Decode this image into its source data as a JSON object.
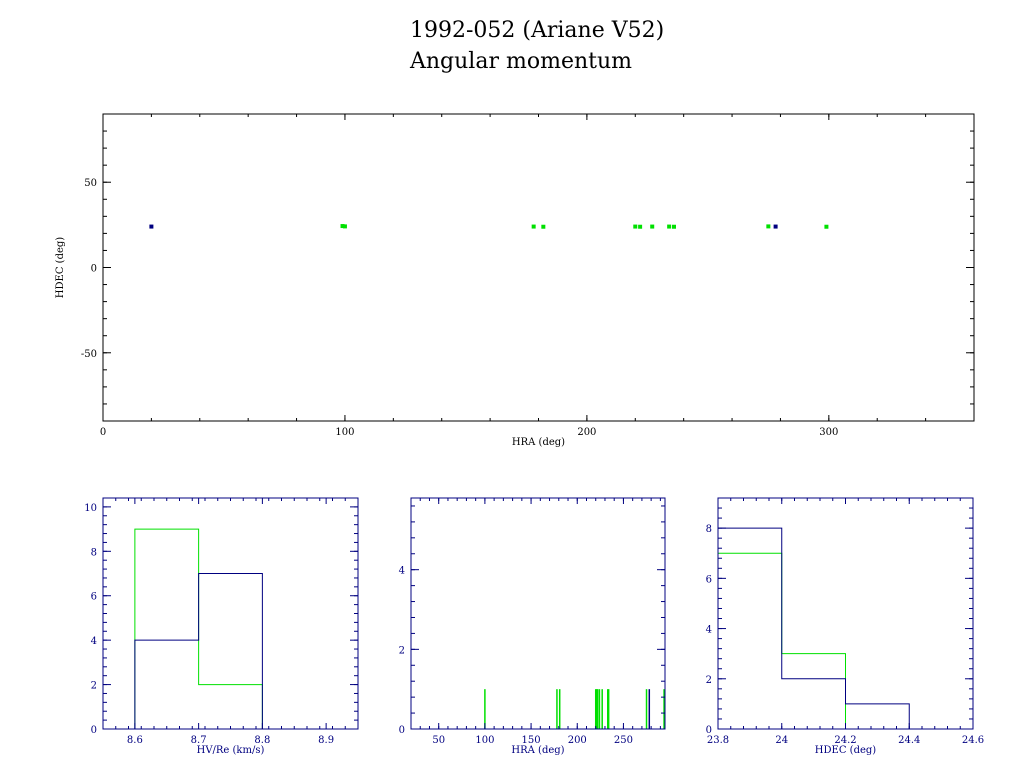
{
  "page": {
    "title_line1": "1992-052 (Ariane V52)",
    "title_line2": "Angular momentum"
  },
  "colors": {
    "primary": "#000080",
    "secondary": "#00e000",
    "axis_top": "#000000"
  },
  "chart_data": [
    {
      "id": "scatter",
      "type": "scatter",
      "xlabel": "HRA (deg)",
      "ylabel": "HDEC (deg)",
      "xlim": [
        0,
        360
      ],
      "ylim": [
        -90,
        90
      ],
      "xticks": [
        0,
        100,
        200,
        300
      ],
      "yticks": [
        -50,
        0,
        50
      ],
      "series": [
        {
          "color": "#000080",
          "x": [
            20,
            278
          ],
          "y": [
            24,
            24
          ]
        },
        {
          "color": "#00e000",
          "x": [
            99,
            100,
            178,
            182,
            220,
            222,
            227,
            234,
            236,
            275,
            299
          ],
          "y": [
            24.3,
            24.1,
            24,
            23.9,
            24,
            23.9,
            24,
            24,
            23.9,
            24.1,
            23.9
          ]
        }
      ]
    },
    {
      "id": "hist-hv",
      "type": "histogram",
      "xlabel": "HV/Re (km/s)",
      "xlim": [
        8.55,
        8.95
      ],
      "ylim": [
        0,
        10.4
      ],
      "xticks": [
        8.6,
        8.7,
        8.8,
        8.9
      ],
      "yticks": [
        0,
        2,
        4,
        6,
        8,
        10
      ],
      "series": [
        {
          "color": "#00e000",
          "bins": [
            8.6,
            8.7,
            8.8
          ],
          "counts": [
            9,
            2
          ]
        },
        {
          "color": "#000080",
          "bins": [
            8.6,
            8.7,
            8.8
          ],
          "counts": [
            4,
            7
          ]
        }
      ]
    },
    {
      "id": "hist-hra",
      "type": "histogram",
      "xlabel": "HRA (deg)",
      "xlim": [
        20,
        295
      ],
      "ylim": [
        0,
        5.8
      ],
      "xticks": [
        50,
        100,
        150,
        200,
        250
      ],
      "yticks": [
        0,
        2,
        4
      ],
      "series": [
        {
          "color": "#00e000",
          "lines": [
            100,
            178,
            181,
            220,
            221,
            222,
            224,
            227,
            233,
            234,
            275,
            294
          ],
          "counts": [
            1,
            1,
            1,
            1,
            1,
            1,
            1,
            1,
            1,
            1,
            1,
            1
          ]
        },
        {
          "color": "#000080",
          "lines": [
            278
          ],
          "counts": [
            1
          ]
        }
      ]
    },
    {
      "id": "hist-hdec",
      "type": "histogram",
      "xlabel": "HDEC (deg)",
      "xlim": [
        23.8,
        24.6
      ],
      "ylim": [
        0,
        9.2
      ],
      "xticks": [
        23.8,
        24,
        24.2,
        24.4,
        24.6
      ],
      "xtick_labels": [
        "23.8",
        "24",
        "24.2",
        "24.4",
        "24.6"
      ],
      "yticks": [
        0,
        2,
        4,
        6,
        8
      ],
      "series": [
        {
          "color": "#00e000",
          "bins": [
            23.8,
            24.0,
            24.2
          ],
          "counts": [
            7,
            3
          ]
        },
        {
          "color": "#000080",
          "bins": [
            23.8,
            24.0,
            24.2,
            24.4
          ],
          "counts": [
            8,
            2,
            1
          ]
        }
      ]
    }
  ]
}
